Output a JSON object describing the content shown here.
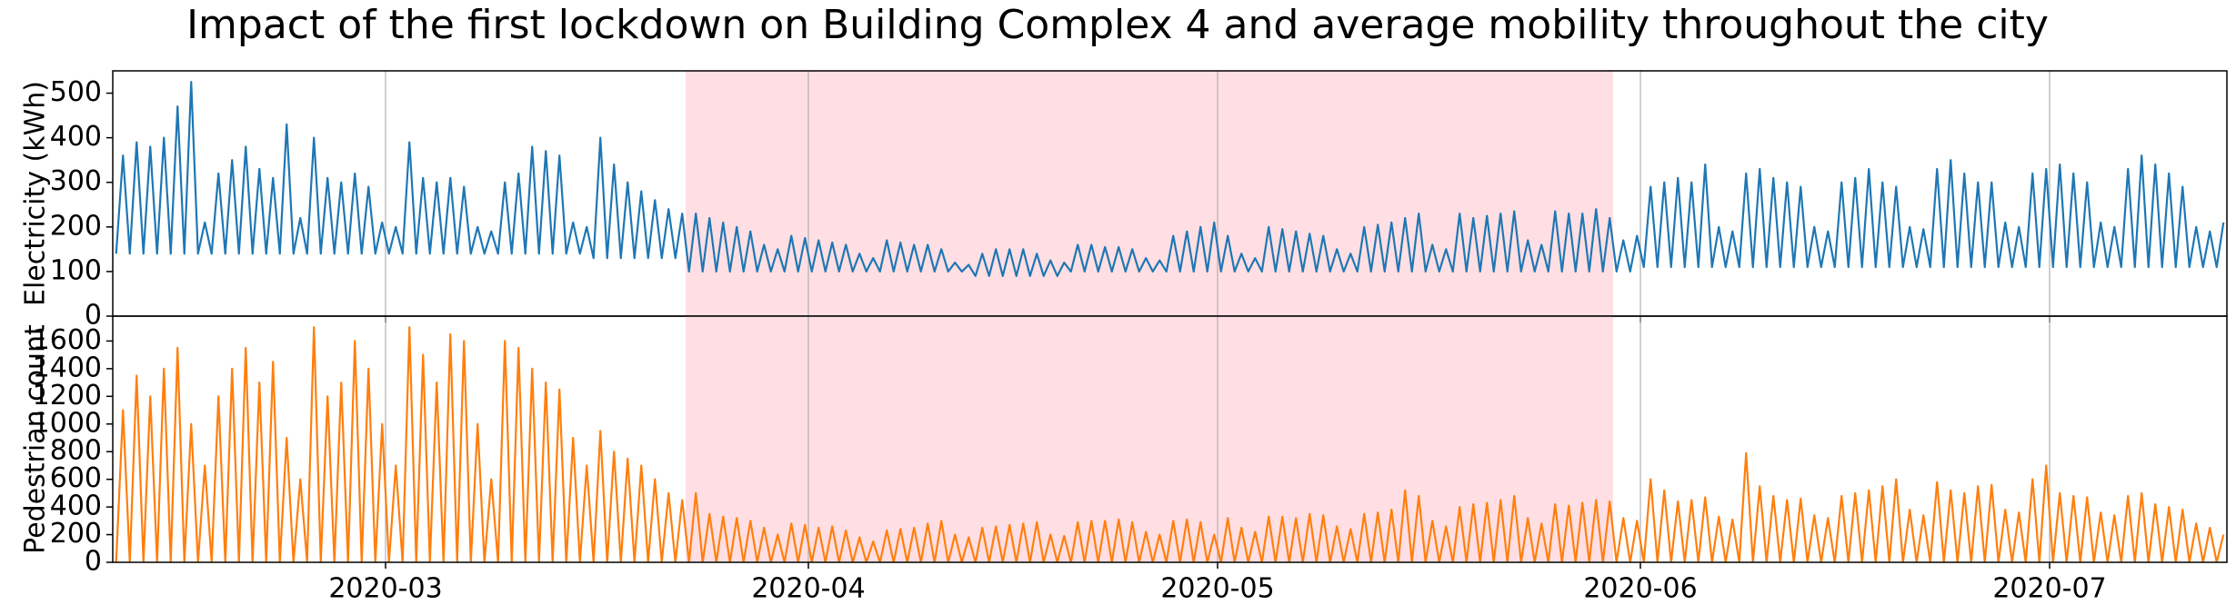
{
  "chart_data": [
    {
      "type": "line",
      "title": "Impact of the first lockdown on Building Complex 4 and average mobility throughout the city",
      "ylabel": "Electricity (kWh)",
      "xlim": [
        "2020-02-10",
        "2020-07-14"
      ],
      "xticks": [
        {
          "value": "2020-03-01",
          "label": "2020-03"
        },
        {
          "value": "2020-04-01",
          "label": "2020-04"
        },
        {
          "value": "2020-05-01",
          "label": "2020-05"
        },
        {
          "value": "2020-06-01",
          "label": "2020-06"
        },
        {
          "value": "2020-07-01",
          "label": "2020-07"
        }
      ],
      "ylim": [
        0,
        550
      ],
      "yticks": [
        0,
        100,
        200,
        300,
        400,
        500
      ],
      "grid": "x",
      "shade": {
        "range": [
          "2020-03-23",
          "2020-05-30"
        ],
        "color": "#ffdfe3"
      },
      "series": [
        {
          "color": "#1f77b4",
          "values": [
            140,
            360,
            140,
            390,
            140,
            380,
            140,
            400,
            140,
            470,
            140,
            525,
            140,
            210,
            140,
            320,
            140,
            350,
            140,
            380,
            140,
            330,
            140,
            310,
            140,
            430,
            140,
            220,
            140,
            400,
            140,
            310,
            140,
            300,
            140,
            320,
            140,
            290,
            140,
            210,
            140,
            200,
            140,
            390,
            140,
            310,
            140,
            300,
            140,
            310,
            140,
            290,
            140,
            200,
            140,
            190,
            140,
            300,
            140,
            320,
            140,
            380,
            140,
            370,
            140,
            360,
            140,
            210,
            140,
            200,
            130,
            400,
            130,
            340,
            130,
            300,
            130,
            280,
            130,
            260,
            130,
            240,
            130,
            230,
            100,
            230,
            100,
            220,
            100,
            210,
            100,
            200,
            100,
            190,
            100,
            160,
            100,
            150,
            100,
            180,
            100,
            175,
            100,
            170,
            100,
            165,
            100,
            160,
            100,
            140,
            100,
            130,
            100,
            170,
            100,
            165,
            100,
            160,
            100,
            160,
            100,
            150,
            100,
            120,
            100,
            115,
            90,
            140,
            90,
            150,
            90,
            150,
            90,
            150,
            90,
            140,
            90,
            125,
            90,
            120,
            100,
            160,
            100,
            160,
            100,
            155,
            100,
            155,
            100,
            150,
            100,
            130,
            100,
            125,
            100,
            180,
            100,
            190,
            100,
            200,
            100,
            210,
            100,
            180,
            100,
            140,
            100,
            130,
            100,
            200,
            100,
            195,
            100,
            190,
            100,
            185,
            100,
            180,
            100,
            150,
            100,
            140,
            100,
            200,
            100,
            205,
            100,
            210,
            100,
            220,
            100,
            230,
            100,
            160,
            100,
            150,
            100,
            230,
            100,
            220,
            100,
            225,
            100,
            230,
            100,
            235,
            100,
            170,
            100,
            160,
            100,
            235,
            100,
            230,
            100,
            230,
            100,
            240,
            100,
            220,
            100,
            170,
            100,
            180,
            110,
            290,
            110,
            300,
            110,
            310,
            110,
            300,
            110,
            340,
            110,
            200,
            110,
            190,
            110,
            320,
            110,
            330,
            110,
            310,
            110,
            300,
            110,
            290,
            110,
            200,
            110,
            190,
            110,
            300,
            110,
            310,
            110,
            330,
            110,
            300,
            110,
            290,
            110,
            200,
            110,
            195,
            110,
            330,
            110,
            350,
            110,
            320,
            110,
            300,
            110,
            300,
            110,
            210,
            110,
            200,
            110,
            320,
            110,
            330,
            110,
            340,
            110,
            320,
            110,
            300,
            110,
            210,
            110,
            200,
            110,
            330,
            110,
            360,
            110,
            340,
            110,
            320,
            110,
            290,
            110,
            200,
            110,
            190,
            110,
            210
          ]
        }
      ]
    },
    {
      "type": "line",
      "ylabel": "Pedestrian count",
      "xlim": [
        "2020-02-10",
        "2020-07-14"
      ],
      "xticks": [
        {
          "value": "2020-03-01",
          "label": "2020-03"
        },
        {
          "value": "2020-04-01",
          "label": "2020-04"
        },
        {
          "value": "2020-05-01",
          "label": "2020-05"
        },
        {
          "value": "2020-06-01",
          "label": "2020-06"
        },
        {
          "value": "2020-07-01",
          "label": "2020-07"
        }
      ],
      "ylim": [
        0,
        1780
      ],
      "yticks": [
        0,
        200,
        400,
        600,
        800,
        1000,
        1200,
        1400,
        1600
      ],
      "grid": "x",
      "shade": {
        "range": [
          "2020-03-23",
          "2020-05-30"
        ],
        "color": "#ffdfe3"
      },
      "series": [
        {
          "color": "#ff7f0e",
          "values": [
            0,
            1100,
            0,
            1350,
            0,
            1200,
            0,
            1400,
            0,
            1550,
            0,
            1000,
            0,
            700,
            0,
            1200,
            0,
            1400,
            0,
            1550,
            0,
            1300,
            0,
            1450,
            0,
            900,
            0,
            600,
            0,
            1700,
            0,
            1200,
            0,
            1300,
            0,
            1600,
            0,
            1400,
            0,
            1000,
            0,
            700,
            0,
            1700,
            0,
            1500,
            0,
            1300,
            0,
            1650,
            0,
            1600,
            0,
            1000,
            0,
            600,
            0,
            1600,
            0,
            1550,
            0,
            1400,
            0,
            1300,
            0,
            1250,
            0,
            900,
            0,
            700,
            0,
            950,
            0,
            800,
            0,
            750,
            0,
            700,
            0,
            600,
            0,
            500,
            0,
            450,
            0,
            500,
            0,
            350,
            0,
            330,
            0,
            320,
            0,
            300,
            0,
            250,
            0,
            200,
            0,
            280,
            0,
            270,
            0,
            250,
            0,
            260,
            0,
            230,
            0,
            180,
            0,
            150,
            0,
            230,
            0,
            240,
            0,
            250,
            0,
            280,
            0,
            300,
            0,
            200,
            0,
            180,
            0,
            250,
            0,
            260,
            0,
            270,
            0,
            280,
            0,
            290,
            0,
            200,
            0,
            190,
            0,
            290,
            0,
            300,
            0,
            300,
            0,
            310,
            0,
            290,
            0,
            220,
            0,
            200,
            0,
            300,
            0,
            310,
            0,
            290,
            0,
            200,
            0,
            320,
            0,
            250,
            0,
            220,
            0,
            330,
            0,
            330,
            0,
            320,
            0,
            350,
            0,
            340,
            0,
            260,
            0,
            240,
            0,
            350,
            0,
            360,
            0,
            380,
            0,
            520,
            0,
            480,
            0,
            300,
            0,
            260,
            0,
            400,
            0,
            420,
            0,
            430,
            0,
            450,
            0,
            480,
            0,
            320,
            0,
            280,
            0,
            420,
            0,
            410,
            0,
            430,
            0,
            450,
            0,
            440,
            0,
            320,
            0,
            300,
            0,
            600,
            0,
            520,
            0,
            440,
            0,
            450,
            0,
            470,
            0,
            330,
            0,
            310,
            0,
            790,
            0,
            550,
            0,
            480,
            0,
            450,
            0,
            460,
            0,
            340,
            0,
            320,
            0,
            480,
            0,
            500,
            0,
            520,
            0,
            550,
            0,
            600,
            0,
            380,
            0,
            340,
            0,
            580,
            0,
            520,
            0,
            500,
            0,
            550,
            0,
            560,
            0,
            380,
            0,
            360,
            0,
            600,
            0,
            700,
            0,
            500,
            0,
            480,
            0,
            470,
            0,
            360,
            0,
            340,
            0,
            480,
            0,
            500,
            0,
            420,
            0,
            400,
            0,
            380,
            0,
            280,
            0,
            250,
            0,
            200
          ]
        }
      ]
    }
  ]
}
